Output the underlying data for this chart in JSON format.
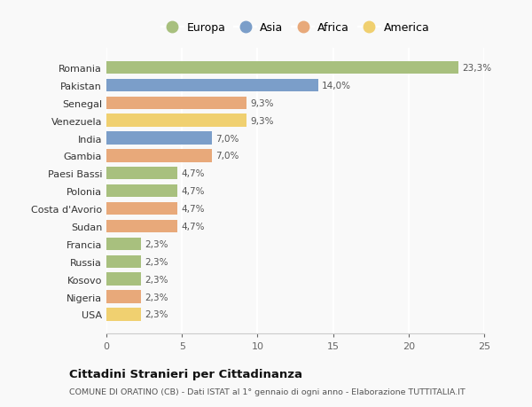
{
  "categories": [
    "Romania",
    "Pakistan",
    "Senegal",
    "Venezuela",
    "India",
    "Gambia",
    "Paesi Bassi",
    "Polonia",
    "Costa d'Avorio",
    "Sudan",
    "Francia",
    "Russia",
    "Kosovo",
    "Nigeria",
    "USA"
  ],
  "values": [
    23.3,
    14.0,
    9.3,
    9.3,
    7.0,
    7.0,
    4.7,
    4.7,
    4.7,
    4.7,
    2.3,
    2.3,
    2.3,
    2.3,
    2.3
  ],
  "labels": [
    "23,3%",
    "14,0%",
    "9,3%",
    "9,3%",
    "7,0%",
    "7,0%",
    "4,7%",
    "4,7%",
    "4,7%",
    "4,7%",
    "2,3%",
    "2,3%",
    "2,3%",
    "2,3%",
    "2,3%"
  ],
  "continents": [
    "Europa",
    "Asia",
    "Africa",
    "America",
    "Asia",
    "Africa",
    "Europa",
    "Europa",
    "Africa",
    "Africa",
    "Europa",
    "Europa",
    "Europa",
    "Africa",
    "America"
  ],
  "colors": {
    "Europa": "#a8c07e",
    "Asia": "#7b9ec9",
    "Africa": "#e8a97a",
    "America": "#f0d070"
  },
  "legend_order": [
    "Europa",
    "Asia",
    "Africa",
    "America"
  ],
  "xlim": [
    0,
    25
  ],
  "xticks": [
    0,
    5,
    10,
    15,
    20,
    25
  ],
  "title": "Cittadini Stranieri per Cittadinanza",
  "subtitle": "COMUNE DI ORATINO (CB) - Dati ISTAT al 1° gennaio di ogni anno - Elaborazione TUTTITALIA.IT",
  "bg_color": "#f9f9f9",
  "grid_color": "#ffffff",
  "bar_height": 0.72
}
